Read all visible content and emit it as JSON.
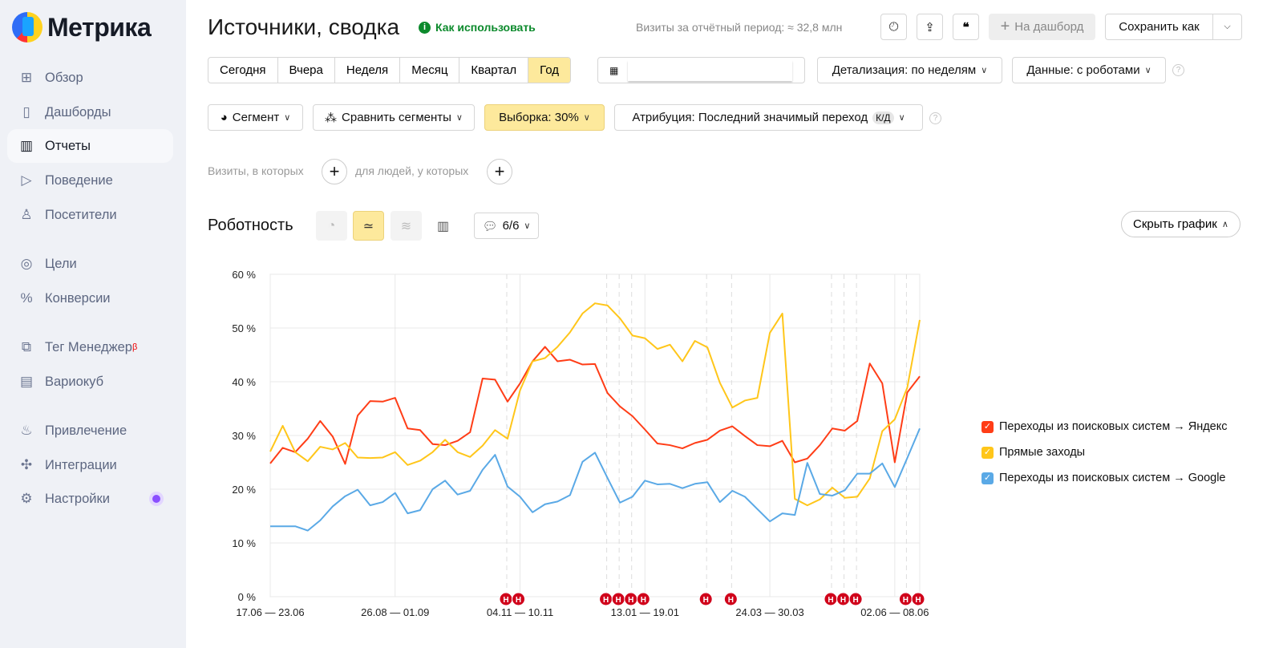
{
  "sidebar": {
    "logo_text": "Метрика",
    "items": [
      {
        "label": "Обзор",
        "icon": "grid-icon",
        "glyph": "⊞"
      },
      {
        "label": "Дашборды",
        "icon": "dashboards-icon",
        "glyph": "▯"
      },
      {
        "label": "Отчеты",
        "icon": "bar-chart-icon",
        "glyph": "▥",
        "active": true
      },
      {
        "label": "Поведение",
        "icon": "play-icon",
        "glyph": "▷"
      },
      {
        "label": "Посетители",
        "icon": "user-icon",
        "glyph": "♙"
      },
      {
        "label": "Цели",
        "icon": "target-icon",
        "glyph": "◎"
      },
      {
        "label": "Конверсии",
        "icon": "percent-icon",
        "glyph": "%"
      },
      {
        "label": "Тег Менеджер",
        "icon": "tag-manager-icon",
        "glyph": "⧉",
        "badge": "β"
      },
      {
        "label": "Вариокуб",
        "icon": "variocube-icon",
        "glyph": "▤"
      },
      {
        "label": "Привлечение",
        "icon": "flame-icon",
        "glyph": "♨"
      },
      {
        "label": "Интеграции",
        "icon": "puzzle-icon",
        "glyph": "✣"
      },
      {
        "label": "Настройки",
        "icon": "gear-icon",
        "glyph": "⚙"
      }
    ]
  },
  "header": {
    "title": "Источники, сводка",
    "how_to": "Как использовать",
    "visits": "Визиты за отчётный период: ≈ 32,8 млн",
    "to_dashboard": "На дашборд",
    "save_as": "Сохранить как"
  },
  "periods": [
    "Сегодня",
    "Вчера",
    "Неделя",
    "Месяц",
    "Квартал",
    "Год"
  ],
  "active_period": "Год",
  "date_input": "",
  "detail": "Детализация: по неделям",
  "data_mode": "Данные: с роботами",
  "segment": "Сегмент",
  "compare": "Сравнить сегменты",
  "sample": "Выборка: 30%",
  "attribution": "Атрибуция: Последний значимый переход",
  "attribution_badge": "К/Д",
  "filter": {
    "visits_label": "Визиты, в которых",
    "people_label": "для людей, у которых"
  },
  "chart_section": {
    "title": "Роботность",
    "annotations": "6/6",
    "hide_chart": "Скрыть график"
  },
  "colors": {
    "accent_yellow": "#fde99c",
    "red": "#ff3d17",
    "yellow": "#ffc61a",
    "blue": "#5aa9e6"
  },
  "chart_data": {
    "type": "line",
    "ylim": [
      0,
      60
    ],
    "yticks": [
      "0 %",
      "10 %",
      "20 %",
      "30 %",
      "40 %",
      "50 %",
      "60 %"
    ],
    "grid": true,
    "legend": "right",
    "xtick_labels": [
      {
        "index": 0,
        "label": "17.06 — 23.06"
      },
      {
        "index": 10,
        "label": "26.08 — 01.09"
      },
      {
        "index": 20,
        "label": "04.11 — 10.11"
      },
      {
        "index": 30,
        "label": "13.01 — 19.01"
      },
      {
        "index": 40,
        "label": "24.03 — 30.03"
      },
      {
        "index": 50,
        "label": "02.06 — 08.06"
      }
    ],
    "holiday_label": "Н",
    "holiday_weeks": [
      19,
      20,
      27,
      28,
      29,
      30,
      35,
      37,
      45,
      46,
      47,
      51,
      52
    ],
    "series": [
      {
        "name": "Переходы из поисковых систем → Яндекс",
        "color": "#ff3d17",
        "values": [
          24.8,
          27.7,
          26.9,
          29.4,
          32.7,
          29.8,
          24.7,
          33.7,
          36.4,
          36.3,
          37.0,
          31.3,
          31.0,
          28.4,
          28.2,
          29.0,
          30.6,
          40.6,
          40.4,
          36.3,
          39.7,
          43.8,
          46.5,
          43.8,
          44.1,
          43.2,
          43.3,
          37.9,
          35.4,
          33.6,
          31.1,
          28.5,
          28.2,
          27.6,
          28.6,
          29.2,
          30.9,
          31.7,
          29.9,
          28.2,
          28.0,
          29.0,
          25.0,
          25.7,
          28.2,
          31.3,
          30.9,
          32.7,
          43.4,
          39.7,
          25.0,
          38.0,
          41.0
        ]
      },
      {
        "name": "Прямые заходы",
        "color": "#ffc61a",
        "values": [
          27.0,
          31.8,
          26.9,
          25.2,
          27.9,
          27.4,
          28.6,
          25.9,
          25.8,
          25.9,
          26.9,
          24.5,
          25.3,
          26.9,
          29.2,
          26.9,
          26.0,
          28.1,
          31.0,
          29.4,
          38.4,
          43.8,
          44.4,
          46.5,
          49.2,
          52.7,
          54.6,
          54.2,
          51.8,
          48.6,
          48.1,
          46.1,
          46.9,
          43.8,
          47.6,
          46.4,
          39.8,
          35.2,
          36.5,
          37.0,
          49.1,
          52.7,
          18.2,
          17.0,
          18.1,
          20.3,
          18.4,
          18.6,
          22.0,
          30.8,
          33.0,
          38.9,
          51.5
        ]
      },
      {
        "name": "Переходы из поисковых систем → Google",
        "color": "#5aa9e6",
        "values": [
          13.1,
          13.1,
          13.1,
          12.3,
          14.2,
          16.8,
          18.7,
          19.9,
          17.0,
          17.6,
          19.3,
          15.5,
          16.1,
          20.0,
          21.6,
          19.0,
          19.7,
          23.6,
          26.4,
          20.5,
          18.6,
          15.7,
          17.2,
          17.7,
          18.9,
          25.1,
          26.8,
          22.1,
          17.5,
          18.6,
          21.6,
          20.9,
          21.0,
          20.2,
          21.0,
          21.3,
          17.6,
          19.7,
          18.6,
          16.3,
          14.0,
          15.5,
          15.2,
          24.9,
          19.1,
          18.8,
          19.8,
          22.9,
          22.9,
          24.8,
          20.4,
          25.8,
          31.3
        ]
      }
    ]
  }
}
